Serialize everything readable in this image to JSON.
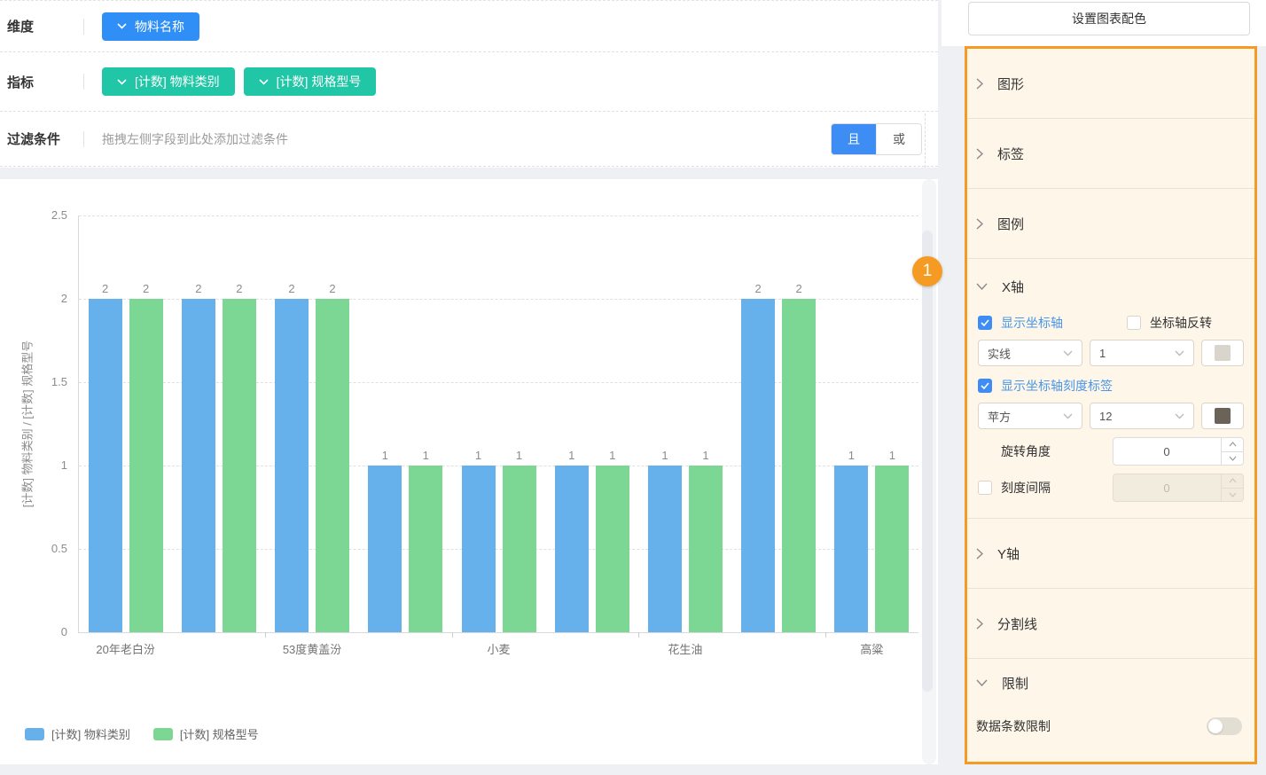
{
  "config": {
    "dimension": {
      "label": "维度",
      "field": "物料名称"
    },
    "metrics": {
      "label": "指标",
      "fields": [
        "[计数] 物料类别",
        "[计数] 规格型号"
      ]
    },
    "filter": {
      "label": "过滤条件",
      "placeholder": "拖拽左侧字段到此处添加过滤条件",
      "and": "且",
      "or": "或"
    }
  },
  "chart_data": {
    "type": "bar",
    "categories": [
      "20年老白汾",
      "",
      "53度黄盖汾",
      "",
      "小麦",
      "",
      "花生油",
      "",
      "高粱"
    ],
    "series": [
      {
        "name": "[计数] 物料类别",
        "color": "#66B1EC",
        "values": [
          2,
          2,
          2,
          1,
          1,
          1,
          1,
          2,
          1
        ]
      },
      {
        "name": "[计数] 规格型号",
        "color": "#7CD795",
        "values": [
          2,
          2,
          2,
          1,
          1,
          1,
          1,
          2,
          1
        ]
      }
    ],
    "ylabel": "[计数] 物料类别 / [计数] 规格型号",
    "ylim": [
      0,
      2.5
    ],
    "yticks": [
      0,
      0.5,
      1,
      1.5,
      2,
      2.5
    ],
    "grid": "horizontal-dashed",
    "legend_position": "bottom-left",
    "bar_value_labels": true,
    "x_label_interval": 2
  },
  "annotation": {
    "badge_text": "1",
    "accent_color": "#F59A23"
  },
  "settings": {
    "color_button": "设置图表配色",
    "sections": {
      "shape": "图形",
      "label": "标签",
      "legend": "图例",
      "x_axis": "X轴",
      "y_axis": "Y轴",
      "split_line": "分割线",
      "limit": "限制"
    },
    "x_axis": {
      "show_axis": "显示坐标轴",
      "invert_axis": "坐标轴反转",
      "line_style": "实线",
      "line_width": "1",
      "show_tick_labels": "显示坐标轴刻度标签",
      "font": "苹方",
      "font_size": "12",
      "rotate_label": "旋转角度",
      "rotate_value": "0",
      "tick_interval_label": "刻度间隔",
      "tick_interval_value": "0",
      "axis_line_color": "#D9D5CC",
      "tick_label_color": "#6B6358"
    },
    "limit": {
      "data_limit_label": "数据条数限制",
      "enabled": false
    }
  }
}
